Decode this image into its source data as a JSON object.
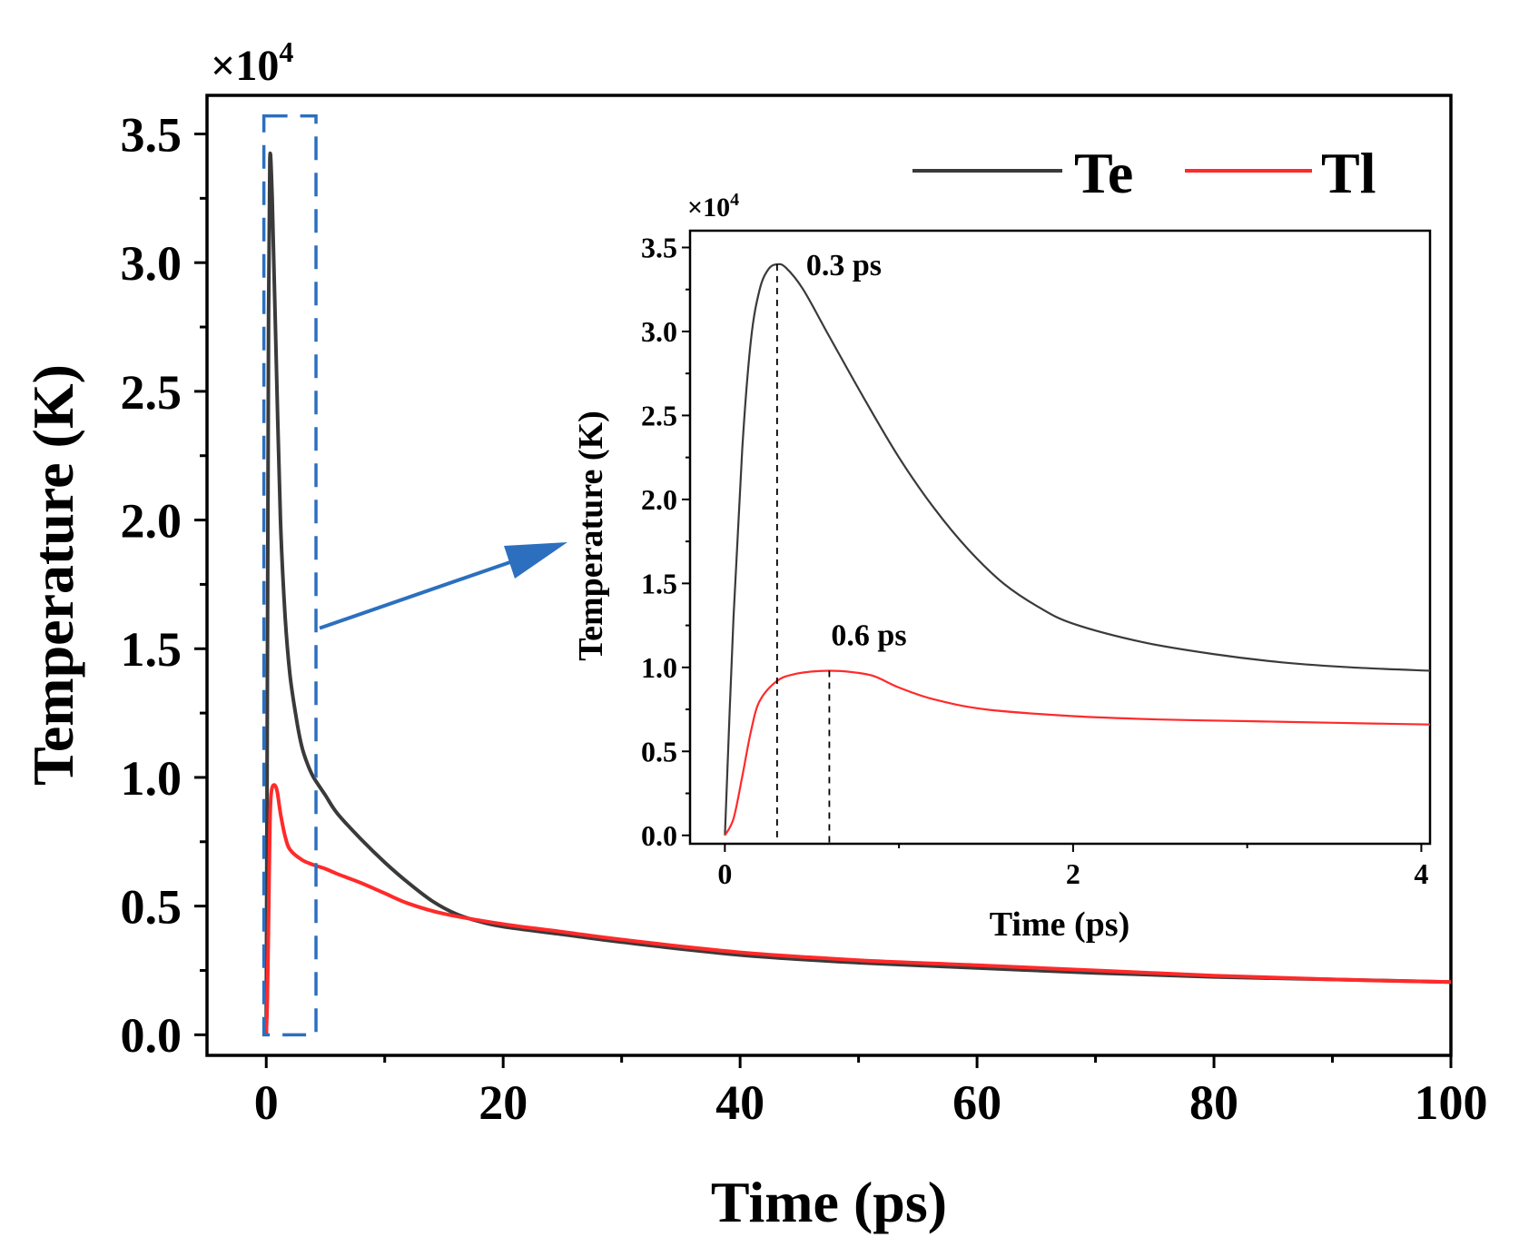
{
  "chart_data": [
    {
      "id": "main",
      "type": "line",
      "title": "",
      "xlabel": "Time (ps)",
      "ylabel": "Temperature (K)",
      "multiplier_label": "×10",
      "multiplier_exp": "4",
      "xlim": [
        -5,
        100
      ],
      "ylim": [
        -0.08,
        3.65
      ],
      "xticks": [
        0,
        20,
        40,
        60,
        80,
        100
      ],
      "xtick_labels": [
        "0",
        "20",
        "40",
        "60",
        "80",
        "100"
      ],
      "yticks": [
        0.0,
        0.5,
        1.0,
        1.5,
        2.0,
        2.5,
        3.0,
        3.5
      ],
      "ytick_labels": [
        "0.0",
        "0.5",
        "1.0",
        "1.5",
        "2.0",
        "2.5",
        "3.0",
        "3.5"
      ],
      "legend": {
        "position": "top-right",
        "entries": [
          "Te",
          "Tl"
        ]
      },
      "series": [
        {
          "name": "Te",
          "color": "#3a3a3a",
          "points": [
            [
              0,
              0.0
            ],
            [
              0.1,
              1.4
            ],
            [
              0.2,
              2.8
            ],
            [
              0.3,
              3.4
            ],
            [
              0.5,
              3.25
            ],
            [
              0.8,
              2.7
            ],
            [
              1.2,
              2.0
            ],
            [
              1.6,
              1.62
            ],
            [
              2,
              1.4
            ],
            [
              2.5,
              1.24
            ],
            [
              3,
              1.12
            ],
            [
              3.5,
              1.05
            ],
            [
              4,
              1.0
            ],
            [
              5,
              0.93
            ],
            [
              6,
              0.86
            ],
            [
              8,
              0.76
            ],
            [
              10,
              0.67
            ],
            [
              12,
              0.59
            ],
            [
              14,
              0.52
            ],
            [
              16,
              0.47
            ],
            [
              18,
              0.44
            ],
            [
              20,
              0.42
            ],
            [
              25,
              0.39
            ],
            [
              30,
              0.36
            ],
            [
              40,
              0.31
            ],
            [
              50,
              0.28
            ],
            [
              60,
              0.26
            ],
            [
              70,
              0.24
            ],
            [
              80,
              0.225
            ],
            [
              90,
              0.215
            ],
            [
              100,
              0.205
            ]
          ]
        },
        {
          "name": "Tl",
          "color": "#ff2a2a",
          "points": [
            [
              0,
              0.0
            ],
            [
              0.1,
              0.15
            ],
            [
              0.2,
              0.45
            ],
            [
              0.3,
              0.8
            ],
            [
              0.4,
              0.93
            ],
            [
              0.6,
              0.97
            ],
            [
              0.9,
              0.95
            ],
            [
              1.2,
              0.86
            ],
            [
              1.6,
              0.77
            ],
            [
              2,
              0.72
            ],
            [
              3,
              0.68
            ],
            [
              4,
              0.66
            ],
            [
              5,
              0.645
            ],
            [
              6,
              0.625
            ],
            [
              8,
              0.59
            ],
            [
              10,
              0.55
            ],
            [
              12,
              0.51
            ],
            [
              15,
              0.47
            ],
            [
              20,
              0.43
            ],
            [
              25,
              0.4
            ],
            [
              30,
              0.37
            ],
            [
              40,
              0.32
            ],
            [
              50,
              0.29
            ],
            [
              60,
              0.27
            ],
            [
              70,
              0.25
            ],
            [
              80,
              0.23
            ],
            [
              90,
              0.215
            ],
            [
              100,
              0.205
            ]
          ]
        }
      ],
      "annotations": [
        {
          "type": "dashed-box",
          "color": "#2c6fbf",
          "x_range": [
            -0.2,
            4.2
          ],
          "y_range": [
            0.0,
            3.57
          ]
        },
        {
          "type": "arrow",
          "color": "#2c6fbf",
          "points_to": "inset"
        }
      ]
    },
    {
      "id": "inset",
      "type": "line",
      "title": "",
      "xlabel": "Time (ps)",
      "ylabel": "Temperature (K)",
      "multiplier_label": "×10",
      "multiplier_exp": "4",
      "xlim": [
        -0.2,
        4.05
      ],
      "ylim": [
        -0.05,
        3.6
      ],
      "xticks": [
        0,
        2,
        4
      ],
      "xtick_labels": [
        "0",
        "2",
        "4"
      ],
      "yticks": [
        0.0,
        0.5,
        1.0,
        1.5,
        2.0,
        2.5,
        3.0,
        3.5
      ],
      "ytick_labels": [
        "0.0",
        "0.5",
        "1.0",
        "1.5",
        "2.0",
        "2.5",
        "3.0",
        "3.5"
      ],
      "series": [
        {
          "name": "Te",
          "color": "#3a3a3a",
          "points": [
            [
              0,
              0.0
            ],
            [
              0.05,
              1.3
            ],
            [
              0.1,
              2.3
            ],
            [
              0.15,
              2.95
            ],
            [
              0.2,
              3.25
            ],
            [
              0.25,
              3.37
            ],
            [
              0.3,
              3.4
            ],
            [
              0.35,
              3.38
            ],
            [
              0.45,
              3.25
            ],
            [
              0.6,
              2.97
            ],
            [
              0.8,
              2.6
            ],
            [
              1.0,
              2.25
            ],
            [
              1.2,
              1.95
            ],
            [
              1.4,
              1.7
            ],
            [
              1.6,
              1.5
            ],
            [
              1.8,
              1.36
            ],
            [
              2.0,
              1.26
            ],
            [
              2.4,
              1.15
            ],
            [
              2.8,
              1.08
            ],
            [
              3.2,
              1.03
            ],
            [
              3.6,
              1.0
            ],
            [
              4.05,
              0.98
            ]
          ]
        },
        {
          "name": "Tl",
          "color": "#ff2a2a",
          "points": [
            [
              0,
              0.0
            ],
            [
              0.05,
              0.1
            ],
            [
              0.1,
              0.35
            ],
            [
              0.15,
              0.62
            ],
            [
              0.2,
              0.8
            ],
            [
              0.3,
              0.92
            ],
            [
              0.4,
              0.96
            ],
            [
              0.5,
              0.975
            ],
            [
              0.6,
              0.98
            ],
            [
              0.7,
              0.975
            ],
            [
              0.85,
              0.95
            ],
            [
              1.0,
              0.88
            ],
            [
              1.2,
              0.81
            ],
            [
              1.5,
              0.75
            ],
            [
              2.0,
              0.71
            ],
            [
              2.5,
              0.69
            ],
            [
              3.0,
              0.68
            ],
            [
              3.5,
              0.67
            ],
            [
              4.05,
              0.66
            ]
          ]
        }
      ],
      "annotations": [
        {
          "type": "vline",
          "x": 0.3,
          "y_top": 3.4,
          "label": "0.3 ps"
        },
        {
          "type": "vline",
          "x": 0.6,
          "y_top": 0.98,
          "label": "0.6 ps"
        }
      ]
    }
  ]
}
